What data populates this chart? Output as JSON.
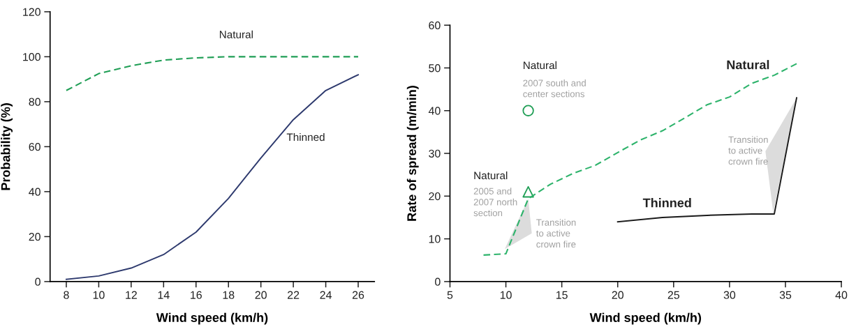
{
  "chart_data": [
    {
      "type": "line",
      "xlabel": "Wind speed (km/h)",
      "ylabel": "Probability (%)",
      "x": [
        8,
        10,
        12,
        14,
        16,
        18,
        20,
        22,
        24,
        26
      ],
      "xlim": [
        7,
        27
      ],
      "xticks": [
        8,
        10,
        12,
        14,
        16,
        18,
        20,
        22,
        24,
        26
      ],
      "ylim": [
        0,
        120
      ],
      "yticks": [
        0,
        20,
        40,
        60,
        80,
        100,
        120
      ],
      "grid": false,
      "legend": false,
      "series": [
        {
          "name": "Natural",
          "color": "#1f9e55",
          "line_style": "dashed",
          "values": [
            85,
            92.5,
            96,
            98.5,
            99.5,
            100,
            100,
            100,
            100,
            100
          ]
        },
        {
          "name": "Thinned",
          "color": "#2e3a6e",
          "line_style": "solid",
          "values": [
            1,
            2.5,
            6,
            12,
            22,
            37,
            55,
            72,
            85,
            92
          ]
        }
      ]
    },
    {
      "type": "line",
      "xlabel": "Wind speed (km/h)",
      "ylabel": "Rate of spread (m/min)",
      "xlim": [
        5,
        40
      ],
      "xticks": [
        5,
        10,
        15,
        20,
        25,
        30,
        35,
        40
      ],
      "ylim": [
        0,
        60
      ],
      "yticks": [
        0,
        10,
        20,
        30,
        40,
        50,
        60
      ],
      "grid": false,
      "legend": false,
      "series": [
        {
          "name": "Natural",
          "color": "#2db36b",
          "line_style": "dashed",
          "x": [
            8,
            10,
            12,
            14,
            16,
            18,
            20,
            22,
            24,
            26,
            28,
            30,
            32,
            34,
            36
          ],
          "values": [
            6.2,
            6.5,
            19.4,
            22.8,
            25.3,
            27.2,
            30.2,
            33.1,
            35.3,
            38.3,
            41.4,
            43.2,
            46.4,
            48.3,
            51
          ]
        },
        {
          "name": "Thinned",
          "color": "#1a1a1a",
          "line_style": "solid",
          "x": [
            20,
            24,
            28,
            32,
            34,
            36
          ],
          "values": [
            14,
            15,
            15.5,
            15.8,
            15.8,
            43
          ]
        },
        {
          "type": "scatter",
          "marker": "circle",
          "color": "#1f9e55",
          "x": [
            12
          ],
          "values": [
            40
          ]
        },
        {
          "type": "scatter",
          "marker": "triangle",
          "color": "#1f9e55",
          "x": [
            12
          ],
          "values": [
            21
          ]
        }
      ],
      "annotations": [
        "Natural",
        "2007 south and\ncenter sections",
        "Natural",
        "2005 and\n2007 north\nsection",
        "Transition\nto active\ncrown fire",
        "Transition\nto active\ncrown fire"
      ]
    }
  ]
}
